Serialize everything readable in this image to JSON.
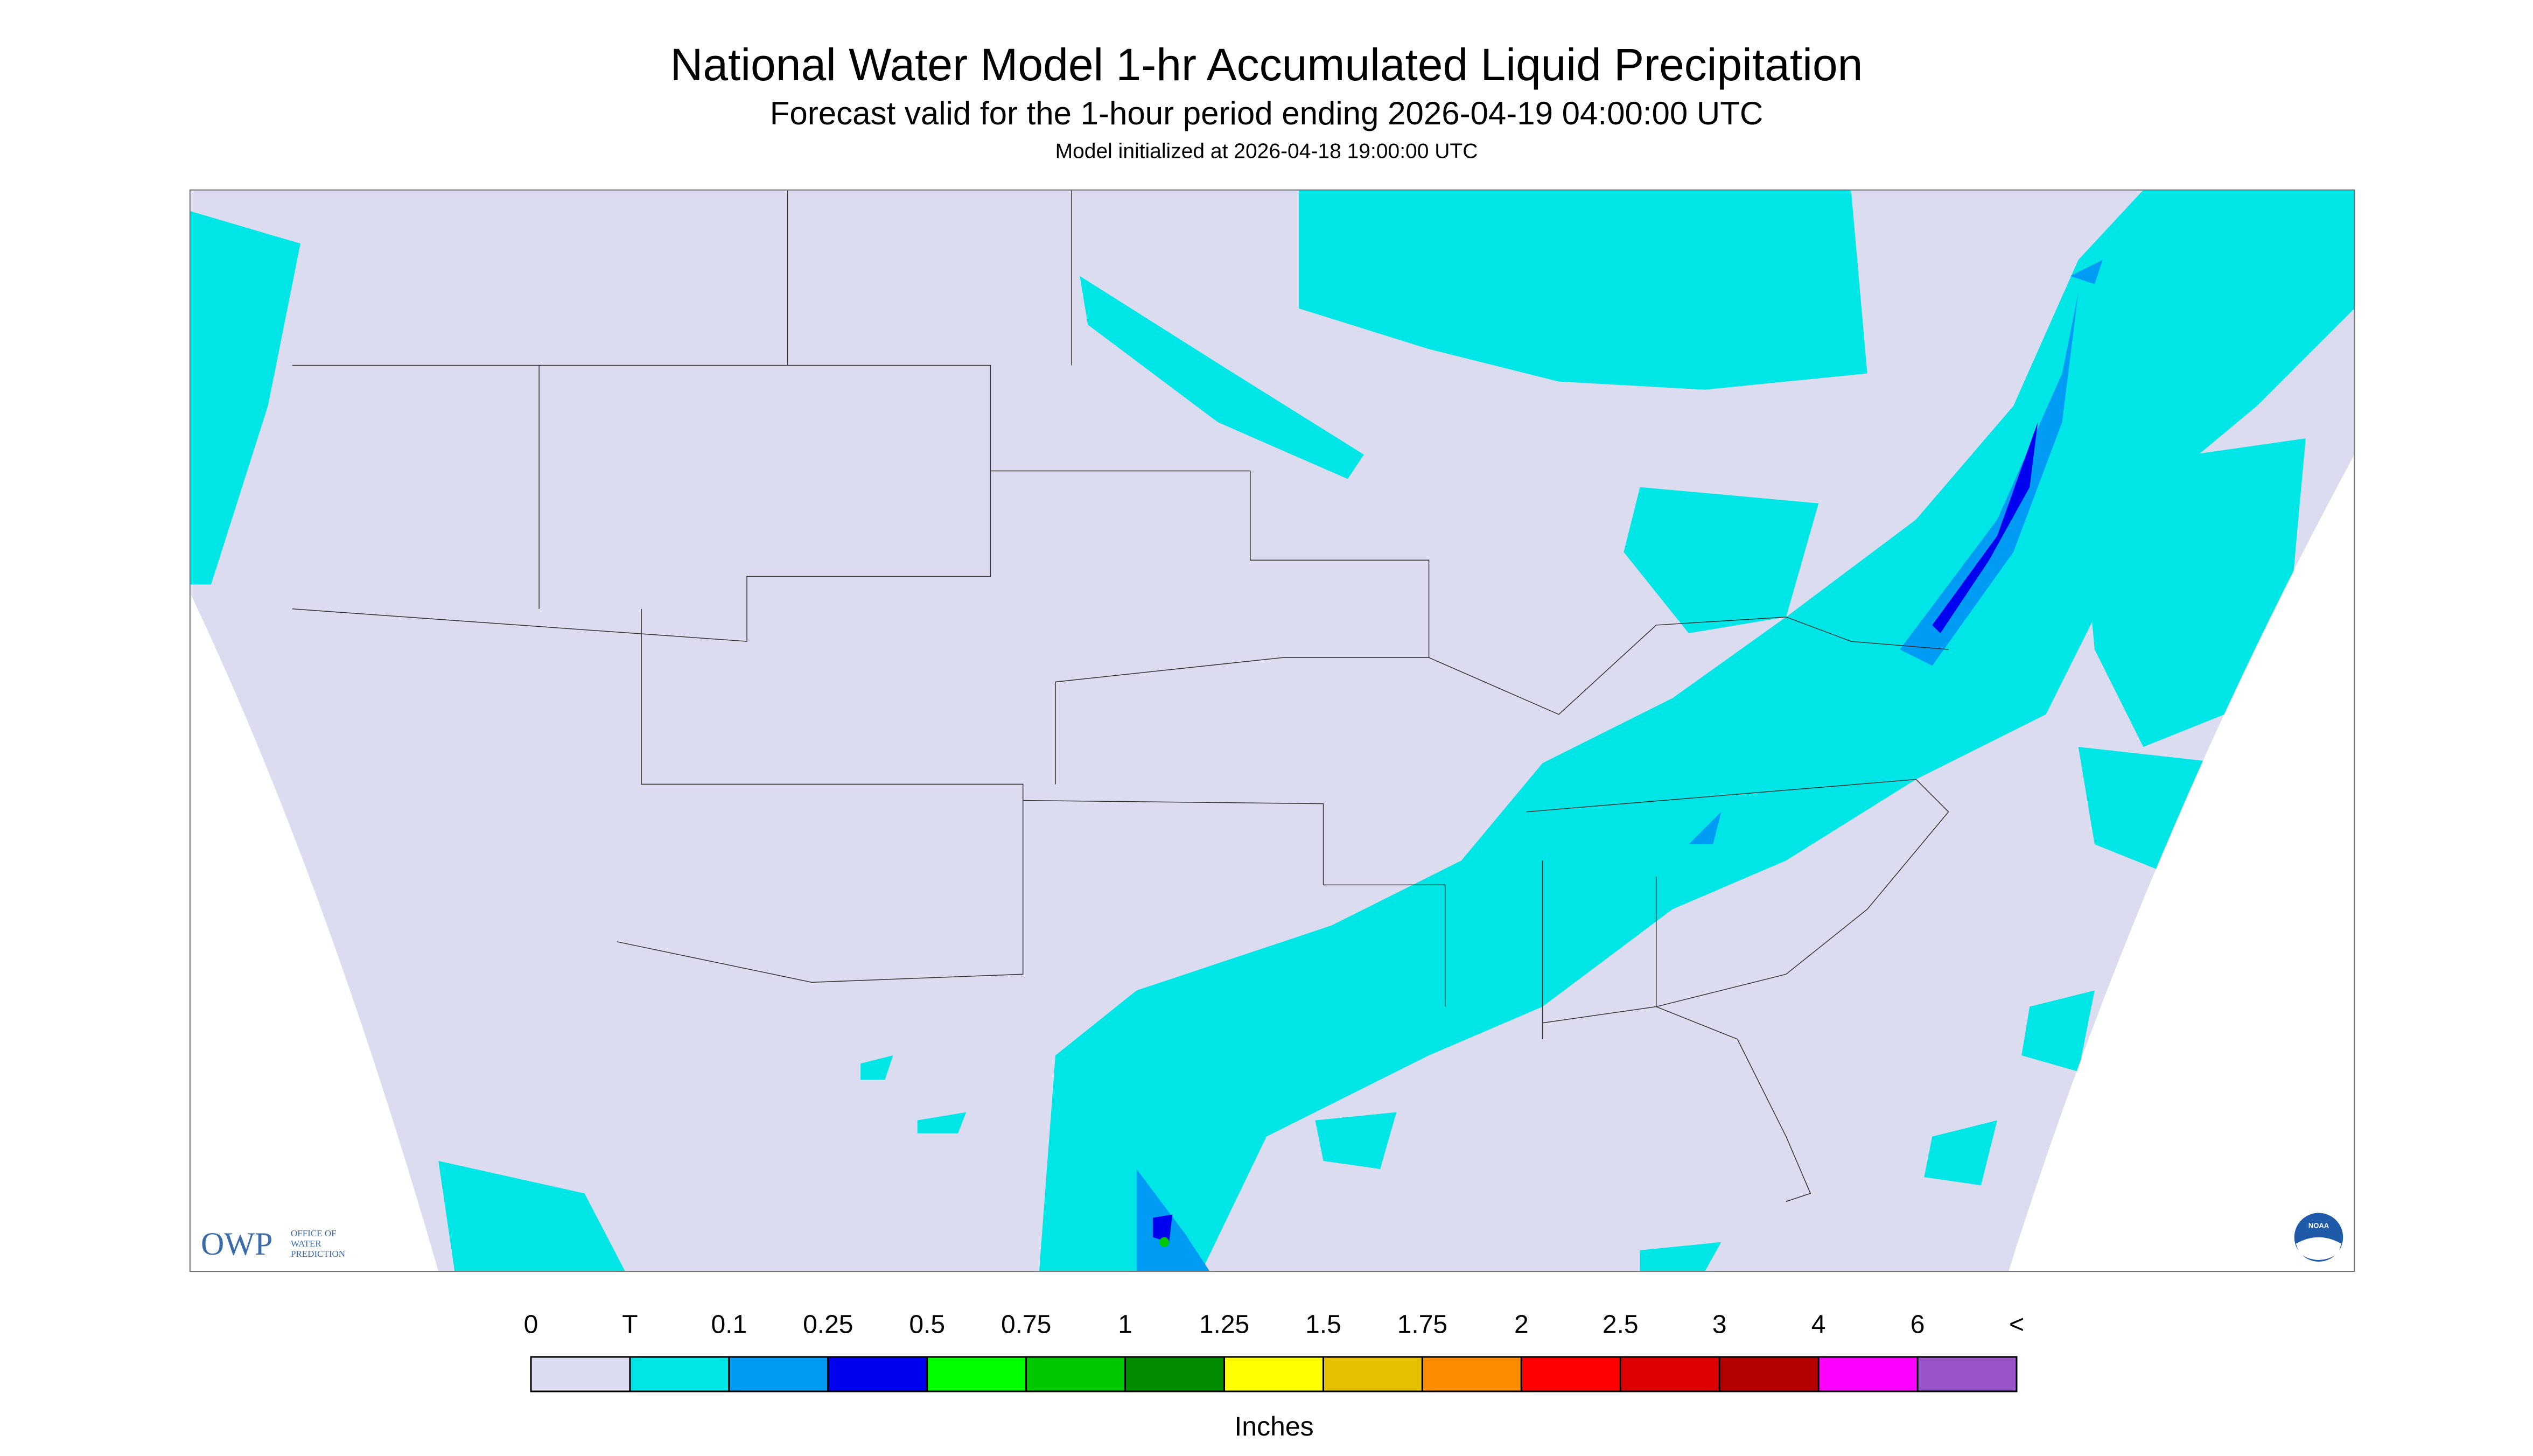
{
  "header": {
    "title": "National Water Model 1-hr Accumulated Liquid Precipitation",
    "subtitle": "Forecast valid for the 1-hour period ending 2026-04-19 04:00:00 UTC",
    "note": "Model initialized at 2026-04-18 19:00:00 UTC"
  },
  "legend": {
    "labels": [
      "0",
      "T",
      "0.1",
      "0.25",
      "0.5",
      "0.75",
      "1",
      "1.25",
      "1.5",
      "1.75",
      "2",
      "2.5",
      "3",
      "4",
      "6",
      "<"
    ],
    "colors": [
      "#dcdcf0",
      "#00e6e6",
      "#009bf5",
      "#0000f0",
      "#00ff00",
      "#00c800",
      "#008c00",
      "#ffff00",
      "#e6c000",
      "#ff8c00",
      "#ff0000",
      "#dc0000",
      "#b40000",
      "#ff00ff",
      "#9955c9"
    ],
    "unit": "Inches"
  },
  "logo": {
    "owp": "OWP",
    "lines": [
      "OFFICE OF",
      "WATER",
      "PREDICTION"
    ],
    "noaa": "NOAA"
  }
}
